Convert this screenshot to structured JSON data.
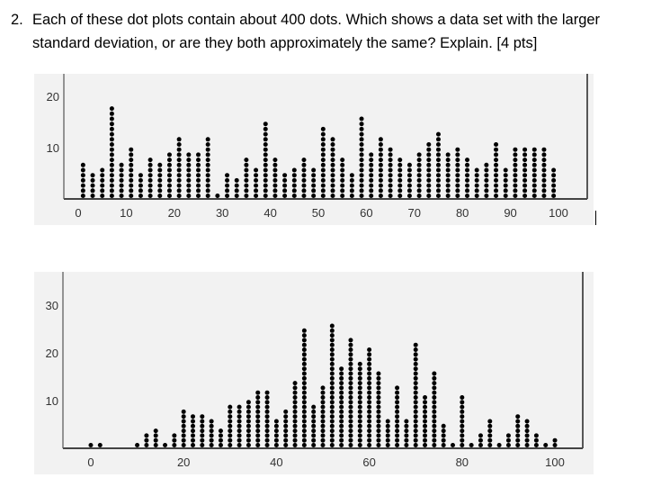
{
  "question": {
    "number": "2.",
    "text": "Each of these dot plots contain about 400 dots.  Which shows a data set with the larger standard deviation, or are they both approximately the same?  Explain.   [4 pts]"
  },
  "chart_data": [
    {
      "type": "scatter",
      "subtype": "dot-plot",
      "title": "",
      "xlabel": "",
      "ylabel": "",
      "xlim": [
        -3,
        106
      ],
      "ylim": [
        0,
        22
      ],
      "x_ticks": [
        "0",
        "10",
        "20",
        "30",
        "40",
        "50",
        "60",
        "70",
        "80",
        "90",
        "100"
      ],
      "y_ticks": [
        "10",
        "20"
      ],
      "grid": false,
      "dot_color": "#000000",
      "background": "#f2f2f2",
      "x": [
        1,
        3,
        5,
        7,
        9,
        11,
        13,
        15,
        17,
        19,
        21,
        23,
        25,
        27,
        29,
        31,
        33,
        35,
        37,
        39,
        41,
        43,
        45,
        47,
        49,
        51,
        53,
        55,
        57,
        59,
        61,
        63,
        65,
        67,
        69,
        71,
        73,
        75,
        77,
        79,
        81,
        83,
        85,
        87,
        89,
        91,
        93,
        95,
        97,
        99
      ],
      "counts": [
        7,
        5,
        6,
        18,
        7,
        10,
        5,
        8,
        7,
        9,
        12,
        9,
        9,
        12,
        1,
        5,
        4,
        8,
        6,
        15,
        8,
        5,
        6,
        8,
        6,
        14,
        12,
        8,
        5,
        16,
        9,
        12,
        10,
        8,
        7,
        9,
        11,
        13,
        9,
        10,
        8,
        6,
        7,
        11,
        6,
        10,
        10,
        10,
        10,
        6
      ]
    },
    {
      "type": "scatter",
      "subtype": "dot-plot",
      "title": "",
      "xlabel": "",
      "ylabel": "",
      "xlim": [
        -6,
        106
      ],
      "ylim": [
        0,
        36
      ],
      "x_ticks": [
        "0",
        "20",
        "40",
        "60",
        "80",
        "100"
      ],
      "y_ticks": [
        "10",
        "20",
        "30"
      ],
      "grid": false,
      "dot_color": "#000000",
      "background": "#f2f2f2",
      "x": [
        0,
        2,
        10,
        12,
        14,
        16,
        18,
        20,
        22,
        24,
        26,
        28,
        30,
        32,
        34,
        36,
        38,
        40,
        42,
        44,
        46,
        48,
        50,
        52,
        54,
        56,
        58,
        60,
        62,
        64,
        66,
        68,
        70,
        72,
        74,
        76,
        78,
        80,
        82,
        84,
        86,
        88,
        90,
        92,
        94,
        96,
        98,
        100
      ],
      "counts": [
        1,
        1,
        1,
        3,
        4,
        1,
        3,
        8,
        7,
        7,
        6,
        4,
        9,
        9,
        10,
        12,
        12,
        6,
        8,
        14,
        25,
        9,
        13,
        26,
        17,
        23,
        18,
        21,
        16,
        6,
        13,
        6,
        22,
        11,
        16,
        5,
        1,
        11,
        1,
        3,
        6,
        1,
        3,
        7,
        6,
        3,
        1,
        2
      ]
    }
  ]
}
